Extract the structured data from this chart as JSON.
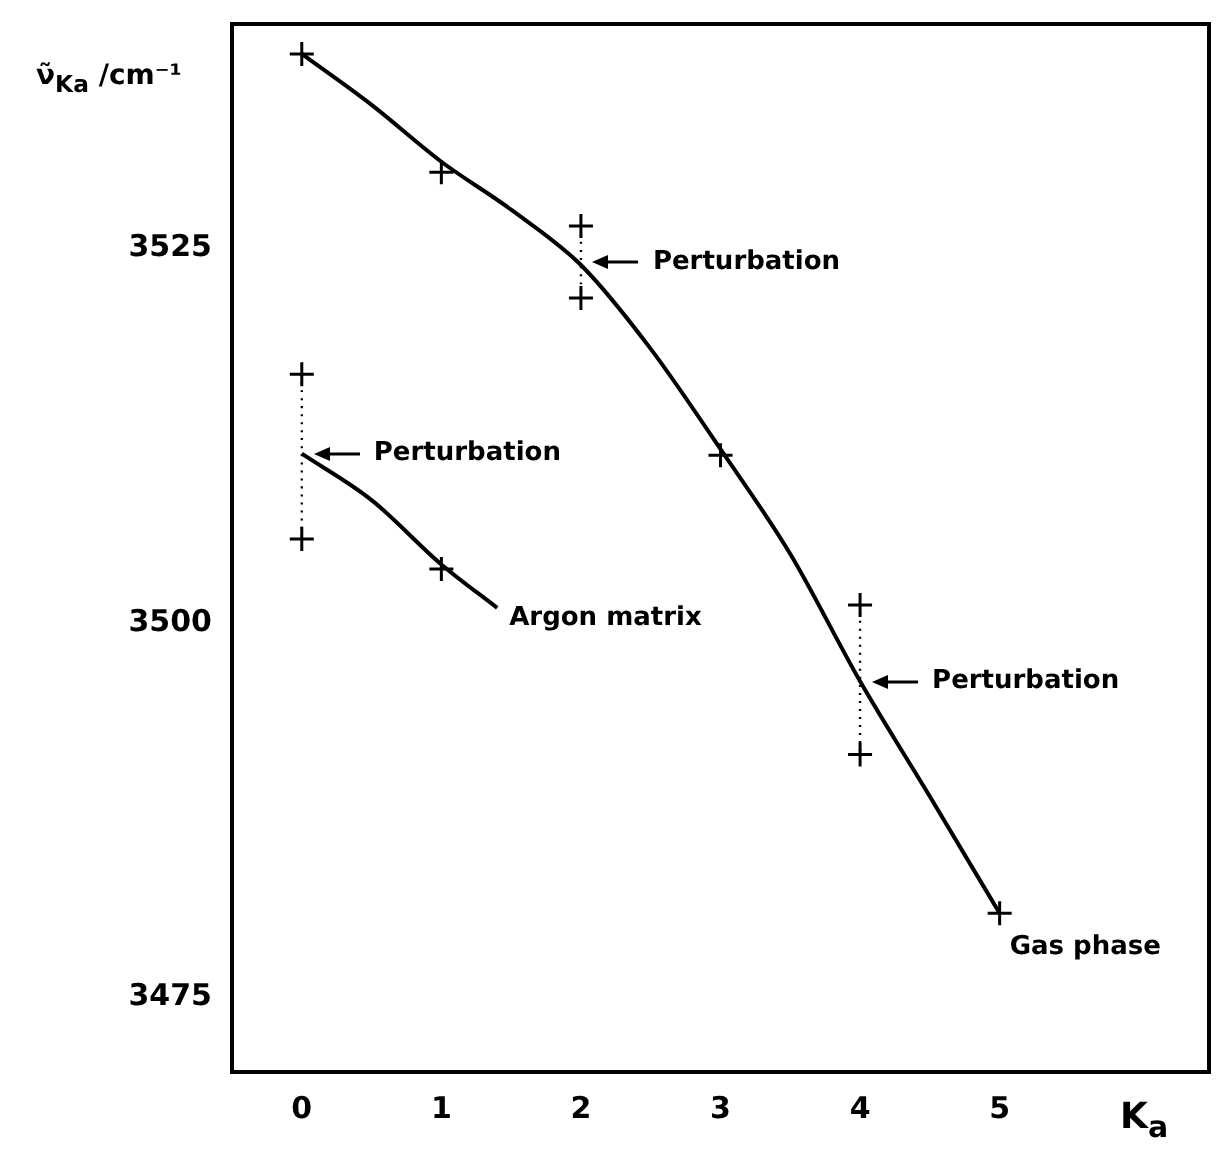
{
  "chart_data": {
    "type": "scatter",
    "xlabel": "K$_{a}$",
    "ylabel": "ν̃$_{Ka}$ /cm⁻¹",
    "xlim": [
      -0.5,
      6.5
    ],
    "xticks": [
      0,
      1,
      2,
      3,
      4,
      5
    ],
    "ylim": [
      3470,
      3540
    ],
    "yticks": [
      3475,
      3500,
      3525
    ],
    "grid": false,
    "legend": false,
    "marker": "cross",
    "series": [
      {
        "color": "#000000",
        "x": [
          0,
          1,
          2,
          2,
          3,
          4,
          4,
          5
        ],
        "values": [
          3538.0,
          3530.1,
          3526.5,
          3521.7,
          3511.2,
          3501.2,
          3491.2,
          3480.6
        ]
      },
      {
        "color": "#000000",
        "x": [
          0,
          0,
          1
        ],
        "values": [
          3516.6,
          3505.6,
          3503.6
        ]
      },
      {
        "type": "line",
        "color": "#000000",
        "marker": "none",
        "line_style": "solid",
        "x": [
          0,
          0.5,
          1,
          1.5,
          2,
          2.5,
          3,
          3.5,
          4,
          4.5,
          5
        ],
        "values": [
          3538.0,
          3534.6,
          3530.8,
          3527.6,
          3523.9,
          3518.3,
          3511.6,
          3504.6,
          3496.1,
          3488.4,
          3480.6
        ]
      },
      {
        "type": "line",
        "color": "#000000",
        "marker": "none",
        "line_style": "solid",
        "x": [
          0,
          0.5,
          1,
          1.4
        ],
        "values": [
          3511.3,
          3508.2,
          3503.9,
          3501.0
        ]
      },
      {
        "type": "line",
        "color": "#000000",
        "marker": "none",
        "line_style": "dotted",
        "x": [
          0,
          0
        ],
        "values": [
          3516.6,
          3505.6
        ]
      },
      {
        "type": "line",
        "color": "#000000",
        "marker": "none",
        "line_style": "dotted",
        "x": [
          2,
          2
        ],
        "values": [
          3526.5,
          3521.7
        ]
      },
      {
        "type": "line",
        "color": "#000000",
        "marker": "none",
        "line_style": "dotted",
        "x": [
          4,
          4
        ],
        "values": [
          3501.2,
          3491.2
        ]
      }
    ],
    "annotations": [
      {
        "text": "Perturbation",
        "x": 0,
        "y": 3511.3
      },
      {
        "text": "Perturbation",
        "x": 2,
        "y": 3524.1
      },
      {
        "text": "Perturbation",
        "x": 4,
        "y": 3496.1
      },
      {
        "text": "Argon matrix",
        "x": 1.4,
        "y": 3501.0
      },
      {
        "text": "Gas phase",
        "x": 5,
        "y": 3480.6
      }
    ]
  }
}
